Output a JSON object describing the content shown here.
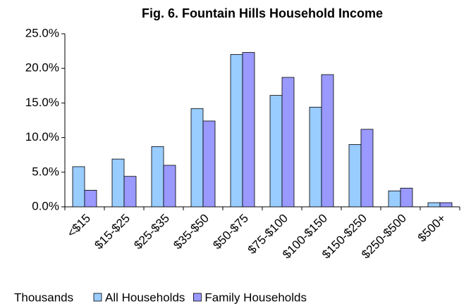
{
  "chart_data": {
    "type": "bar",
    "title": "Fig. 6. Fountain Hills Household Income",
    "x_label": "Thousands",
    "categories": [
      "<$15",
      "$15-$25",
      "$25-$35",
      "$35-$50",
      "$50-$75",
      "$75-$100",
      "$100-$150",
      "$150-$250",
      "$250-$500",
      "$500+"
    ],
    "series": [
      {
        "name": "All Households",
        "color": "#99ccff",
        "values": [
          5.8,
          6.9,
          8.7,
          14.2,
          22.0,
          16.1,
          14.4,
          9.0,
          2.3,
          0.6
        ]
      },
      {
        "name": "Family Households",
        "color": "#9999ff",
        "values": [
          2.4,
          4.4,
          6.0,
          12.4,
          22.3,
          18.7,
          19.1,
          11.2,
          2.7,
          0.6
        ]
      }
    ],
    "ylim": [
      0,
      25
    ],
    "yticks": [
      {
        "value": 0,
        "label": "0.0%"
      },
      {
        "value": 5,
        "label": "5.0%"
      },
      {
        "value": 10,
        "label": "10.0%"
      },
      {
        "value": 15,
        "label": "15.0%"
      },
      {
        "value": 20,
        "label": "20.0%"
      },
      {
        "value": 25,
        "label": "25.0%"
      }
    ],
    "grid": false,
    "legend": "bottom"
  }
}
